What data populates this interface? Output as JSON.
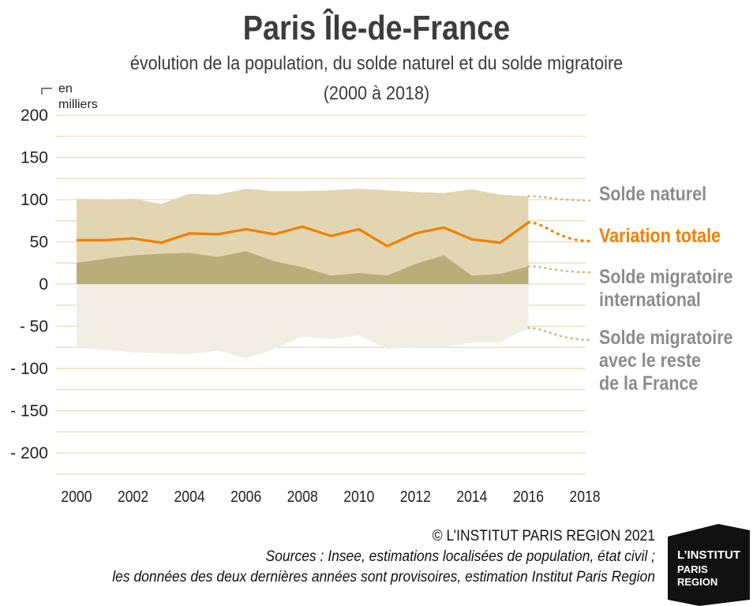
{
  "chart_data": {
    "type": "area",
    "title": "Paris Île-de-France",
    "subtitle_line1": "évolution de la population, du solde naturel et du solde migratoire",
    "subtitle_line2": "(2000 à 2018)",
    "ylabel_line1": "en",
    "ylabel_line2": "milliers",
    "ylim": [
      -220,
      200
    ],
    "xlim": [
      2000,
      2018
    ],
    "yticks": [
      {
        "value": 200,
        "label": "200"
      },
      {
        "value": 150,
        "label": "150"
      },
      {
        "value": 100,
        "label": "100"
      },
      {
        "value": 50,
        "label": "50"
      },
      {
        "value": 0,
        "label": "0"
      },
      {
        "value": -50,
        "label": "- 50"
      },
      {
        "value": -100,
        "label": "- 100"
      },
      {
        "value": -150,
        "label": "- 150"
      },
      {
        "value": -200,
        "label": "- 200"
      }
    ],
    "xticks": [
      "2000",
      "2002",
      "2004",
      "2006",
      "2008",
      "2010",
      "2012",
      "2014",
      "2016",
      "2018"
    ],
    "grid": true,
    "x": [
      2000,
      2001,
      2002,
      2003,
      2004,
      2005,
      2006,
      2007,
      2008,
      2009,
      2010,
      2011,
      2012,
      2013,
      2014,
      2015,
      2016
    ],
    "series": [
      {
        "name": "Solde naturel",
        "label_lines": [
          "Solde naturel"
        ],
        "values": [
          101,
          100,
          101,
          95,
          107,
          106,
          113,
          110,
          110,
          111,
          113,
          111,
          109,
          108,
          112,
          106,
          104
        ],
        "projection": [
          104,
          99
        ],
        "color": "#e2d6b2",
        "label_color": "#8c8c8c"
      },
      {
        "name": "Variation totale",
        "label_lines": [
          "Variation totale"
        ],
        "values": [
          52,
          52,
          54,
          49,
          60,
          59,
          65,
          59,
          68,
          57,
          65,
          45,
          60,
          67,
          53,
          49,
          73
        ],
        "projection": [
          73,
          51
        ],
        "color": "#f08000",
        "label_color": "#f08000"
      },
      {
        "name": "Solde migratoire international",
        "label_lines": [
          "Solde migratoire",
          "international"
        ],
        "values": [
          25,
          30,
          34,
          36,
          37,
          32,
          39,
          27,
          20,
          10,
          13,
          10,
          24,
          34,
          10,
          12,
          21
        ],
        "projection": [
          21,
          14
        ],
        "color": "#b8ae7a",
        "label_color": "#8c8c8c"
      },
      {
        "name": "Solde migratoire avec le reste de la France",
        "label_lines": [
          "Solde migratoire",
          "avec le reste",
          "de la France"
        ],
        "values": [
          -74,
          -78,
          -81,
          -82,
          -83,
          -79,
          -88,
          -77,
          -62,
          -65,
          -61,
          -77,
          -75,
          -75,
          -69,
          -69,
          -52
        ],
        "projection": [
          -52,
          -66
        ],
        "color": "#f2eee4",
        "label_color": "#8c8c8c"
      }
    ],
    "colors": {
      "grid": "#e6dcb8",
      "axis_text": "#222222",
      "title": "#3c3c3c"
    }
  },
  "footer": {
    "copyright": "© L’INSTITUT PARIS REGION 2021",
    "sources_line1": "Sources : Insee, estimations localisées de population, état civil ;",
    "sources_line2": "les données des deux dernières années sont provisoires, estimation Institut Paris Region"
  },
  "logo": {
    "line1": "L’INSTITUT",
    "line2": "PARIS",
    "line3": "REGION"
  }
}
